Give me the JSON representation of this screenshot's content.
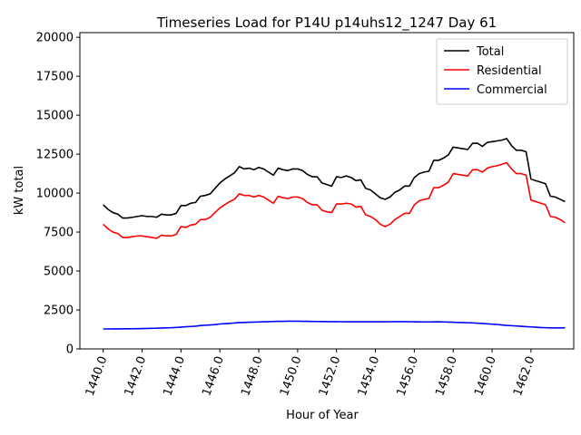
{
  "chart_data": {
    "type": "line",
    "title": "Timeseries Load for P14U p14uhs12_1247  Day 61",
    "xlabel": "Hour of Year",
    "ylabel": "kW total",
    "xlim": [
      1438.8,
      1464.2
    ],
    "ylim": [
      0,
      20300
    ],
    "xticks": [
      1440,
      1442,
      1444,
      1446,
      1448,
      1450,
      1452,
      1454,
      1456,
      1458,
      1460,
      1462
    ],
    "xtick_labels": [
      "1440.0",
      "1442.0",
      "1444.0",
      "1446.0",
      "1448.0",
      "1450.0",
      "1452.0",
      "1454.0",
      "1456.0",
      "1458.0",
      "1460.0",
      "1462.0"
    ],
    "yticks": [
      0,
      2500,
      5000,
      7500,
      10000,
      12500,
      15000,
      17500,
      20000
    ],
    "ytick_labels": [
      "0",
      "2500",
      "5000",
      "7500",
      "10000",
      "12500",
      "15000",
      "17500",
      "20000"
    ],
    "legend_position": "upper-right",
    "x": [
      1440.0,
      1440.25,
      1440.5,
      1440.75,
      1441.0,
      1441.25,
      1441.5,
      1441.75,
      1442.0,
      1442.25,
      1442.5,
      1442.75,
      1443.0,
      1443.25,
      1443.5,
      1443.75,
      1444.0,
      1444.25,
      1444.5,
      1444.75,
      1445.0,
      1445.25,
      1445.5,
      1445.75,
      1446.0,
      1446.25,
      1446.5,
      1446.75,
      1447.0,
      1447.25,
      1447.5,
      1447.75,
      1448.0,
      1448.25,
      1448.5,
      1448.75,
      1449.0,
      1449.25,
      1449.5,
      1449.75,
      1450.0,
      1450.25,
      1450.5,
      1450.75,
      1451.0,
      1451.25,
      1451.5,
      1451.75,
      1452.0,
      1452.25,
      1452.5,
      1452.75,
      1453.0,
      1453.25,
      1453.5,
      1453.75,
      1454.0,
      1454.25,
      1454.5,
      1454.75,
      1455.0,
      1455.25,
      1455.5,
      1455.75,
      1456.0,
      1456.25,
      1456.5,
      1456.75,
      1457.0,
      1457.25,
      1457.5,
      1457.75,
      1458.0,
      1458.25,
      1458.5,
      1458.75,
      1459.0,
      1459.25,
      1459.5,
      1459.75,
      1460.0,
      1460.25,
      1460.5,
      1460.75,
      1461.0,
      1461.25,
      1461.5,
      1461.75,
      1462.0,
      1462.25,
      1462.5,
      1462.75,
      1463.0,
      1463.25,
      1463.5,
      1463.75
    ],
    "series": [
      {
        "name": "Total",
        "color": "#000000",
        "values": [
          9250,
          8950,
          8750,
          8650,
          8400,
          8400,
          8450,
          8500,
          8550,
          8500,
          8500,
          8450,
          8650,
          8600,
          8600,
          8700,
          9200,
          9200,
          9350,
          9400,
          9800,
          9850,
          9950,
          10300,
          10650,
          10900,
          11100,
          11300,
          11700,
          11550,
          11600,
          11500,
          11650,
          11550,
          11350,
          11150,
          11600,
          11500,
          11450,
          11550,
          11550,
          11450,
          11200,
          11050,
          11050,
          10650,
          10550,
          10450,
          11050,
          11000,
          11100,
          11000,
          10800,
          10850,
          10300,
          10200,
          9950,
          9700,
          9600,
          9750,
          10050,
          10200,
          10450,
          10450,
          11000,
          11250,
          11350,
          11400,
          12100,
          12100,
          12250,
          12450,
          12950,
          12900,
          12850,
          12800,
          13200,
          13200,
          13000,
          13250,
          13300,
          13350,
          13400,
          13500,
          13050,
          12750,
          12750,
          12650,
          10900,
          10800,
          10700,
          10600,
          9800,
          9750,
          9600,
          9450
        ]
      },
      {
        "name": "Residential",
        "color": "#ff0000",
        "values": [
          8000,
          7700,
          7500,
          7400,
          7150,
          7150,
          7200,
          7250,
          7250,
          7200,
          7150,
          7100,
          7300,
          7250,
          7250,
          7350,
          7850,
          7800,
          7950,
          8000,
          8300,
          8300,
          8450,
          8750,
          9050,
          9250,
          9450,
          9600,
          9950,
          9850,
          9850,
          9750,
          9850,
          9750,
          9550,
          9350,
          9800,
          9700,
          9650,
          9750,
          9750,
          9650,
          9400,
          9250,
          9250,
          8900,
          8800,
          8750,
          9300,
          9300,
          9350,
          9300,
          9100,
          9150,
          8600,
          8500,
          8300,
          8000,
          7850,
          8000,
          8300,
          8500,
          8700,
          8700,
          9250,
          9500,
          9600,
          9650,
          10350,
          10350,
          10500,
          10700,
          11250,
          11200,
          11150,
          11100,
          11500,
          11500,
          11350,
          11600,
          11700,
          11750,
          11850,
          11950,
          11550,
          11250,
          11250,
          11150,
          9550,
          9450,
          9350,
          9250,
          8500,
          8450,
          8300,
          8100
        ]
      },
      {
        "name": "Commercial",
        "color": "#0000ff",
        "values": [
          1280,
          1280,
          1285,
          1285,
          1290,
          1290,
          1295,
          1300,
          1305,
          1310,
          1320,
          1330,
          1340,
          1350,
          1360,
          1375,
          1400,
          1420,
          1440,
          1460,
          1500,
          1520,
          1540,
          1560,
          1600,
          1620,
          1640,
          1660,
          1690,
          1700,
          1710,
          1720,
          1730,
          1740,
          1750,
          1760,
          1770,
          1770,
          1775,
          1775,
          1775,
          1770,
          1770,
          1765,
          1760,
          1755,
          1750,
          1750,
          1750,
          1745,
          1740,
          1740,
          1740,
          1740,
          1740,
          1745,
          1740,
          1740,
          1740,
          1745,
          1750,
          1750,
          1750,
          1745,
          1740,
          1735,
          1730,
          1730,
          1735,
          1740,
          1730,
          1720,
          1710,
          1700,
          1690,
          1680,
          1670,
          1650,
          1630,
          1610,
          1590,
          1570,
          1540,
          1510,
          1490,
          1470,
          1450,
          1430,
          1410,
          1390,
          1370,
          1360,
          1350,
          1350,
          1350,
          1355
        ]
      }
    ]
  }
}
